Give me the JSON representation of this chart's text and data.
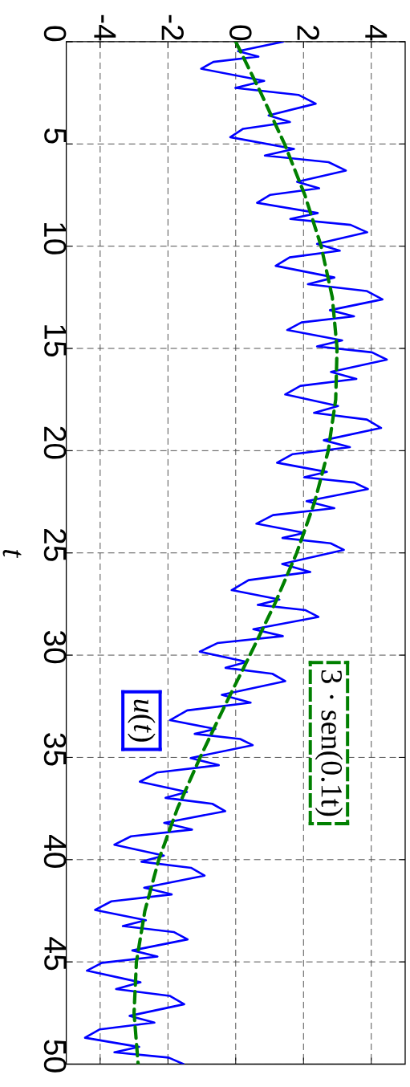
{
  "chart_data": {
    "type": "line",
    "ylabel": "t",
    "xlim": [
      -5,
      5
    ],
    "ylim": [
      50,
      0
    ],
    "xticks": [
      -4,
      -2,
      0,
      2,
      4
    ],
    "yticks": [
      0,
      5,
      10,
      15,
      20,
      25,
      30,
      35,
      40,
      45,
      50
    ],
    "grid": true,
    "series": [
      {
        "name": "*u*(*t*)",
        "color": "#0000ff",
        "line_style": "solid",
        "x": [
          1.4,
          0.07,
          0.67,
          -0.66,
          -1.02,
          0.84,
          -0.01,
          1.85,
          2.36,
          0.97,
          1.6,
          0.22,
          -0.16,
          1.72,
          0.86,
          2.74,
          3.25,
          1.81,
          2.46,
          1.02,
          0.63,
          2.42,
          1.61,
          3.39,
          3.88,
          2.4,
          3.07,
          1.59,
          1.18,
          2.91,
          2.13,
          3.86,
          4.33,
          2.78,
          3.49,
          1.94,
          1.52,
          3.14,
          2.4,
          4.02,
          4.46,
          2.81,
          3.56,
          1.91,
          1.46,
          3.02,
          2.31,
          3.87,
          4.29,
          2.6,
          3.37,
          1.68,
          1.22,
          2.69,
          2.02,
          3.5,
          3.9,
          2.09,
          2.91,
          1.1,
          0.61,
          2.03,
          1.38,
          2.8,
          3.19,
          1.37,
          2.2,
          0.38,
          -0.12,
          1.29,
          0.65,
          2.06,
          2.44,
          0.52,
          1.39,
          -0.54,
          -1.06,
          0.33,
          -0.3,
          1.08,
          1.46,
          -0.41,
          0.44,
          -1.43,
          -1.94,
          -0.6,
          -1.21,
          0.13,
          0.5,
          -1.33,
          -0.5,
          -2.33,
          -2.83,
          -1.44,
          -2.07,
          -0.69,
          -0.31,
          -2.11,
          -1.29,
          -3.09,
          -3.58,
          -2.12,
          -2.78,
          -1.32,
          -0.92,
          -2.7,
          -1.89,
          -3.67,
          -4.15,
          -2.65,
          -3.33,
          -1.83,
          -1.42,
          -3.05,
          -2.31,
          -3.95,
          -4.39,
          -2.81,
          -3.53,
          -1.95,
          -1.52,
          -3.13,
          -2.4,
          -4.01,
          -4.45,
          -2.85,
          -3.58,
          -1.98,
          -1.54
        ],
        "values": [
          0,
          0.46,
          0.73,
          0.99,
          1.32,
          1.92,
          2.26,
          2.6,
          3.03,
          3.6,
          3.93,
          4.26,
          4.67,
          5.24,
          5.57,
          5.89,
          6.3,
          6.85,
          7.17,
          7.49,
          7.88,
          8.38,
          8.67,
          8.96,
          9.32,
          9.89,
          10.22,
          10.55,
          10.96,
          11.53,
          11.86,
          12.19,
          12.6,
          13.13,
          13.43,
          13.73,
          14.1,
          14.61,
          14.9,
          15.19,
          15.55,
          16.15,
          16.49,
          16.83,
          17.25,
          17.82,
          18.15,
          18.48,
          18.89,
          19.49,
          19.83,
          20.17,
          20.59,
          21.04,
          21.3,
          21.56,
          21.88,
          22.47,
          22.81,
          23.15,
          23.57,
          24.02,
          24.27,
          24.53,
          24.85,
          25.54,
          25.93,
          26.33,
          26.82,
          27.28,
          27.54,
          27.8,
          28.13,
          28.73,
          29.07,
          29.41,
          29.83,
          30.33,
          30.62,
          30.91,
          31.27,
          31.94,
          32.32,
          32.7,
          33.18,
          33.61,
          33.85,
          34.1,
          34.4,
          35.03,
          35.38,
          35.74,
          36.19,
          36.69,
          36.98,
          37.27,
          37.63,
          38.2,
          38.53,
          38.86,
          39.27,
          39.8,
          40.1,
          40.4,
          40.78,
          41.37,
          41.7,
          42.04,
          42.46,
          42.96,
          43.25,
          43.54,
          43.9,
          44.44,
          44.74,
          45.05,
          45.43,
          46.0,
          46.33,
          46.66,
          47.07,
          47.64,
          47.97,
          48.3,
          48.71,
          49.16,
          49.42,
          49.68,
          50
        ]
      },
      {
        "name": "3 · sen(0.1t)",
        "color": "#008000",
        "line_style": "dashed",
        "x": [
          0,
          0.74,
          1.44,
          2.04,
          2.52,
          2.85,
          2.99,
          2.95,
          2.73,
          2.33,
          1.8,
          1.15,
          0.42,
          -0.33,
          -1.05,
          -1.72,
          -2.27,
          -2.68,
          -2.93,
          -3.0,
          -2.88
        ],
        "values": [
          0,
          2.5,
          5,
          7.5,
          10,
          12.5,
          15,
          17.5,
          20,
          22.5,
          25,
          27.5,
          30,
          32.5,
          35,
          37.5,
          40,
          42.5,
          45,
          47.5,
          50
        ]
      }
    ]
  }
}
